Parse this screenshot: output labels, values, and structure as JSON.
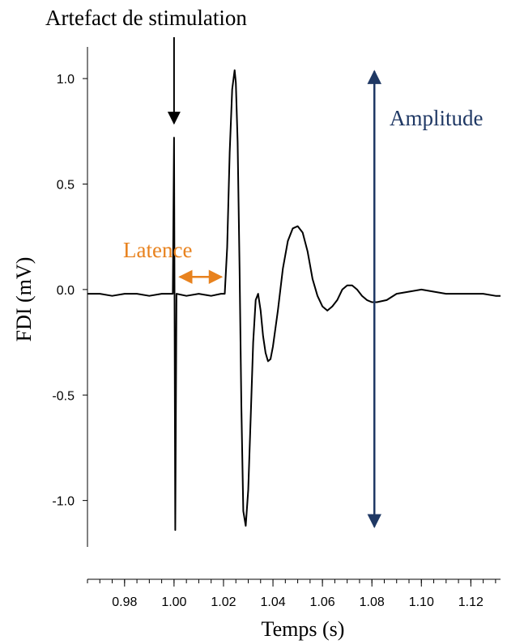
{
  "chart_data": {
    "type": "line",
    "title": "",
    "xlabel": "Temps (s)",
    "ylabel": "FDI (mV)",
    "xlim": [
      0.965,
      1.132
    ],
    "ylim": [
      -1.22,
      1.15
    ],
    "x_ticks": [
      0.98,
      1.0,
      1.02,
      1.04,
      1.06,
      1.08,
      1.1,
      1.12
    ],
    "x_tick_labels": [
      "0.98",
      "1.00",
      "1.02",
      "1.04",
      "1.06",
      "1.08",
      "1.10",
      "1.12"
    ],
    "y_ticks": [
      1.0,
      0.5,
      0.0,
      -0.5,
      -1.0
    ],
    "y_tick_labels": [
      "1.0",
      "0.5",
      "0.0",
      "-0.5",
      "-1.0"
    ],
    "grid": false,
    "series": [
      {
        "x": [
          0.965,
          0.97,
          0.975,
          0.98,
          0.985,
          0.99,
          0.995,
          0.9995,
          1.0,
          1.0005,
          1.001,
          1.005,
          1.01,
          1.015,
          1.019,
          1.0205,
          1.0215,
          1.0225,
          1.0235,
          1.0245,
          1.025,
          1.0257,
          1.0265,
          1.0272,
          1.028,
          1.029,
          1.03,
          1.031,
          1.032,
          1.033,
          1.034,
          1.035,
          1.036,
          1.037,
          1.038,
          1.039,
          1.04,
          1.042,
          1.044,
          1.046,
          1.048,
          1.05,
          1.052,
          1.054,
          1.056,
          1.058,
          1.06,
          1.062,
          1.064,
          1.066,
          1.068,
          1.07,
          1.072,
          1.074,
          1.076,
          1.078,
          1.08,
          1.082,
          1.086,
          1.09,
          1.095,
          1.1,
          1.105,
          1.11,
          1.115,
          1.12,
          1.125,
          1.13,
          1.132
        ],
        "y": [
          -0.02,
          -0.02,
          -0.03,
          -0.02,
          -0.02,
          -0.03,
          -0.02,
          -0.02,
          0.72,
          -1.14,
          -0.02,
          -0.03,
          -0.02,
          -0.03,
          -0.02,
          -0.02,
          0.2,
          0.65,
          0.95,
          1.04,
          0.98,
          0.7,
          0.1,
          -0.55,
          -1.05,
          -1.12,
          -0.95,
          -0.6,
          -0.25,
          -0.05,
          -0.02,
          -0.1,
          -0.22,
          -0.3,
          -0.34,
          -0.33,
          -0.27,
          -0.1,
          0.1,
          0.23,
          0.29,
          0.3,
          0.27,
          0.18,
          0.05,
          -0.03,
          -0.08,
          -0.1,
          -0.08,
          -0.05,
          0.0,
          0.02,
          0.02,
          0.0,
          -0.03,
          -0.05,
          -0.06,
          -0.06,
          -0.05,
          -0.02,
          -0.01,
          0.0,
          -0.01,
          -0.02,
          -0.02,
          -0.02,
          -0.02,
          -0.03,
          -0.03
        ]
      }
    ],
    "annotations": {
      "stimulus": {
        "label": "Artefact de stimulation",
        "x": 1.0,
        "y_from": 1.22,
        "y_to": 0.78
      },
      "latency": {
        "label": "Latence",
        "x_from": 1.001,
        "x_to": 1.0205,
        "y": 0.06
      },
      "amplitude": {
        "label": "Amplitude",
        "x": 1.081,
        "y_from": 1.05,
        "y_to": -1.14
      }
    },
    "colors": {
      "trace": "#000000",
      "axis": "#000000",
      "stimulus": "#000000",
      "latency": "#E8821E",
      "amplitude": "#1F3864"
    }
  }
}
